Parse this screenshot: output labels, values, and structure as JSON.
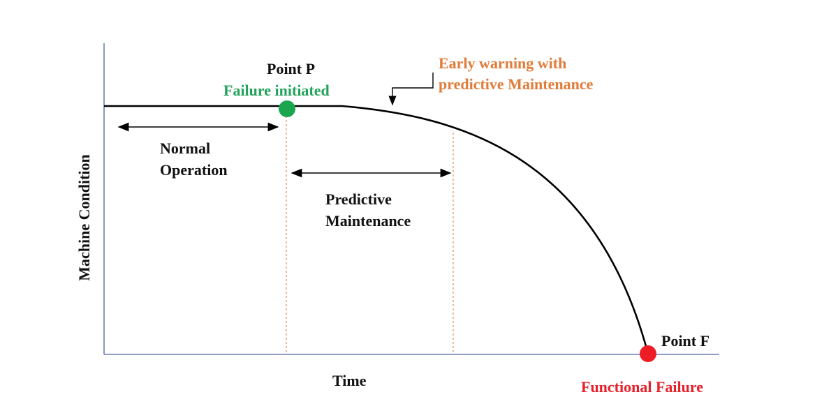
{
  "diagram": {
    "axes": {
      "y_label": "Machine Condition",
      "x_label": "Time"
    },
    "point_p": {
      "title": "Point P",
      "subtitle": "Failure initiated",
      "subtitle_color": "#21a35b",
      "marker_color": "#1aa64f"
    },
    "point_f": {
      "title": "Point F",
      "subtitle": "Functional Failure",
      "subtitle_color": "#e8202a",
      "marker_color": "#ee1c25"
    },
    "early_warning": {
      "line1": "Early warning with",
      "line2": "predictive Maintenance",
      "color": "#e07b39"
    },
    "normal_operation": {
      "line1": "Normal",
      "line2": "Operation"
    },
    "predictive_maintenance": {
      "line1": "Predictive",
      "line2": "Maintenance"
    },
    "colors": {
      "axis": "#6b7fb3",
      "curve": "#000000",
      "dashed_marker": "#e58a5a"
    }
  }
}
